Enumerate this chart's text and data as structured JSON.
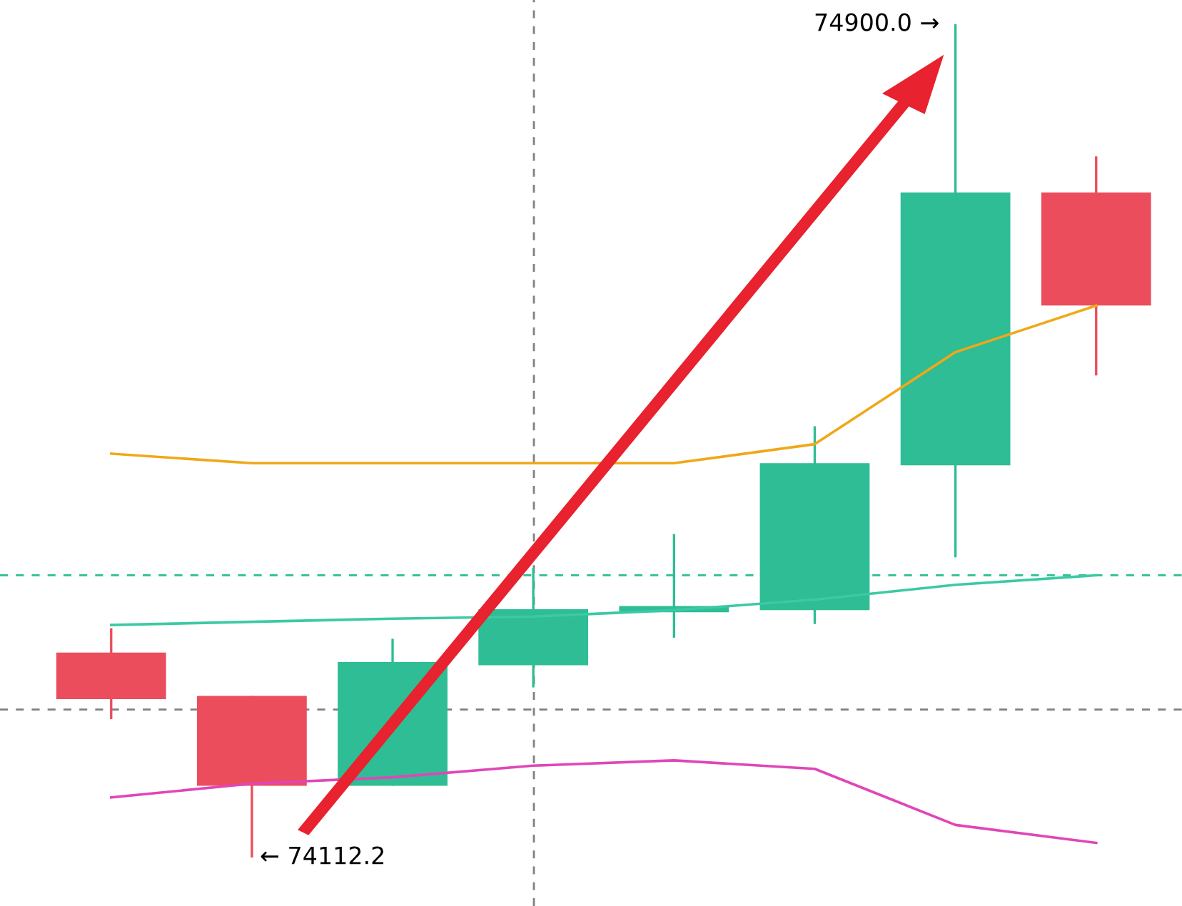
{
  "chart_data": {
    "type": "candlestick",
    "categories": [
      null,
      null,
      null,
      null,
      null,
      null,
      null,
      null
    ],
    "ohlc": [
      [
        74306,
        74329,
        74243,
        74262
      ],
      [
        74265,
        74265,
        74112.2,
        74180
      ],
      [
        74180,
        74319,
        74180,
        74297
      ],
      [
        74294,
        74386,
        74273,
        74347
      ],
      [
        74344,
        74418,
        74320,
        74350
      ],
      [
        74346,
        74520,
        74333,
        74485
      ],
      [
        74483,
        74900.0,
        74396,
        74741
      ],
      [
        74741,
        74775,
        74568,
        74634
      ]
    ],
    "colors": [
      "#eb4d5c",
      "#eb4d5c",
      "#2ebd94",
      "#2ebd94",
      "#2ebd94",
      "#2ebd94",
      "#2ebd94",
      "#eb4d5c"
    ],
    "series": [
      {
        "type": "line",
        "color": "#f0a818",
        "values": [
          74494,
          74485,
          74485,
          74485,
          74485,
          74503,
          74590,
          74634
        ]
      },
      {
        "type": "line",
        "color": "#3cc9a4",
        "values": [
          74332,
          74335,
          74338,
          74340,
          74346,
          74356,
          74370,
          74379
        ]
      },
      {
        "type": "line",
        "color": "#e046b8",
        "values": [
          74169,
          74182,
          74188,
          74199,
          74204,
          74196,
          74143,
          74126
        ]
      }
    ],
    "ref_lines": [
      {
        "axis": "y",
        "value": 74379,
        "color": "#2ebd94",
        "line_style": "dashed"
      },
      {
        "axis": "y",
        "value": 74252,
        "color": "#808080",
        "line_style": "dashed"
      }
    ],
    "annotations": [
      "74900.0 →",
      "← 74112.2"
    ],
    "legend": false
  }
}
